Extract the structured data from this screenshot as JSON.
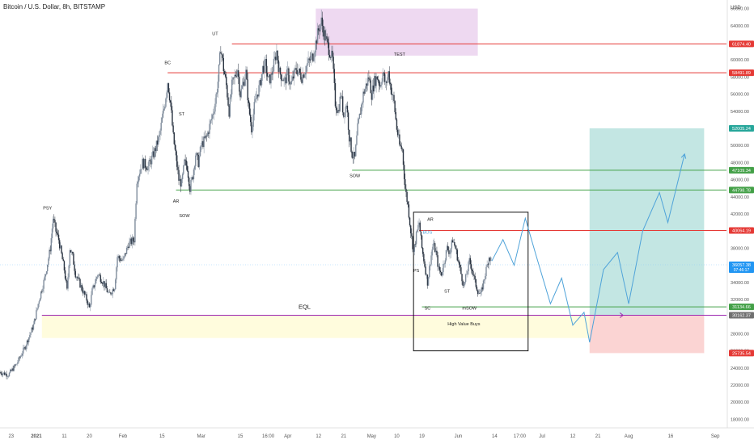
{
  "header": {
    "symbol_title": "Bitcoin / U.S. Dollar, 8h, BITSTAMP"
  },
  "axis": {
    "currency": "USD"
  },
  "chart_data": {
    "type": "candlestick",
    "title": "Bitcoin / U.S. Dollar, 8h, BITSTAMP",
    "ylabel": "USD",
    "ylim": [
      17000,
      67000
    ],
    "y_ticks": [
      18000,
      20000,
      22000,
      24000,
      26000,
      28000,
      30000,
      32000,
      34000,
      36000,
      38000,
      40000,
      42000,
      44000,
      46000,
      48000,
      50000,
      52000,
      54000,
      56000,
      58000,
      60000,
      62000,
      64000,
      66000
    ],
    "x_ticks": [
      {
        "label": "23",
        "day": -9
      },
      {
        "label": "2021",
        "day": 0,
        "bold": true
      },
      {
        "label": "11",
        "day": 10
      },
      {
        "label": "20",
        "day": 19
      },
      {
        "label": "Feb",
        "day": 31
      },
      {
        "label": "15",
        "day": 45
      },
      {
        "label": "Mar",
        "day": 59
      },
      {
        "label": "15",
        "day": 73
      },
      {
        "label": "16:00",
        "day": 83
      },
      {
        "label": "Apr",
        "day": 90
      },
      {
        "label": "12",
        "day": 101
      },
      {
        "label": "21",
        "day": 110
      },
      {
        "label": "May",
        "day": 120
      },
      {
        "label": "10",
        "day": 129
      },
      {
        "label": "19",
        "day": 138
      },
      {
        "label": "Jun",
        "day": 151
      },
      {
        "label": "14",
        "day": 164
      },
      {
        "label": "17:00",
        "day": 173
      },
      {
        "label": "Jul",
        "day": 181
      },
      {
        "label": "12",
        "day": 192
      },
      {
        "label": "21",
        "day": 201
      },
      {
        "label": "Aug",
        "day": 212
      },
      {
        "label": "16",
        "day": 227
      },
      {
        "label": "Sep",
        "day": 243
      }
    ],
    "price_path": [
      [
        -13,
        23500
      ],
      [
        -10,
        23200
      ],
      [
        -7,
        24500
      ],
      [
        -4,
        26500
      ],
      [
        -1,
        29000
      ],
      [
        1,
        32000
      ],
      [
        3,
        34500
      ],
      [
        5,
        38000
      ],
      [
        6,
        41500
      ],
      [
        7,
        40000
      ],
      [
        8,
        39000
      ],
      [
        10,
        35500
      ],
      [
        11,
        33000
      ],
      [
        12,
        38000
      ],
      [
        13,
        37000
      ],
      [
        14,
        35000
      ],
      [
        16,
        33500
      ],
      [
        18,
        32000
      ],
      [
        19,
        31000
      ],
      [
        20,
        33000
      ],
      [
        22,
        35000
      ],
      [
        24,
        34000
      ],
      [
        26,
        32500
      ],
      [
        28,
        33500
      ],
      [
        29,
        37000
      ],
      [
        31,
        36500
      ],
      [
        33,
        38500
      ],
      [
        35,
        39000
      ],
      [
        36,
        46000
      ],
      [
        38,
        48000
      ],
      [
        40,
        47500
      ],
      [
        42,
        49000
      ],
      [
        44,
        51000
      ],
      [
        46,
        55000
      ],
      [
        47,
        57500
      ],
      [
        48,
        55000
      ],
      [
        49,
        51000
      ],
      [
        50,
        48500
      ],
      [
        51,
        46000
      ],
      [
        52,
        45500
      ],
      [
        53,
        48000
      ],
      [
        54,
        47500
      ],
      [
        55,
        45000
      ],
      [
        56,
        46500
      ],
      [
        57,
        49000
      ],
      [
        58,
        48000
      ],
      [
        59,
        50000
      ],
      [
        61,
        51000
      ],
      [
        63,
        53500
      ],
      [
        64,
        55000
      ],
      [
        65,
        57500
      ],
      [
        66,
        61500
      ],
      [
        67,
        59000
      ],
      [
        68,
        57000
      ],
      [
        69,
        54000
      ],
      [
        70,
        57000
      ],
      [
        71,
        58000
      ],
      [
        72,
        59000
      ],
      [
        73,
        56000
      ],
      [
        75,
        58500
      ],
      [
        76,
        54500
      ],
      [
        77,
        52000
      ],
      [
        78,
        54500
      ],
      [
        79,
        56000
      ],
      [
        80,
        57000
      ],
      [
        81,
        59000
      ],
      [
        82,
        59500
      ],
      [
        83,
        57500
      ],
      [
        84,
        58000
      ],
      [
        85,
        59500
      ],
      [
        86,
        61000
      ],
      [
        87,
        58500
      ],
      [
        88,
        58000
      ],
      [
        89,
        57500
      ],
      [
        90,
        58500
      ],
      [
        91,
        57000
      ],
      [
        93,
        59000
      ],
      [
        95,
        58000
      ],
      [
        97,
        59500
      ],
      [
        99,
        60500
      ],
      [
        100,
        62000
      ],
      [
        101,
        63500
      ],
      [
        102,
        64500
      ],
      [
        103,
        63000
      ],
      [
        104,
        62000
      ],
      [
        105,
        61000
      ],
      [
        106,
        60000
      ],
      [
        107,
        55000
      ],
      [
        108,
        54000
      ],
      [
        109,
        56000
      ],
      [
        110,
        53500
      ],
      [
        111,
        55000
      ],
      [
        112,
        51000
      ],
      [
        113,
        49000
      ],
      [
        114,
        48500
      ],
      [
        115,
        52000
      ],
      [
        116,
        54000
      ],
      [
        117,
        56000
      ],
      [
        118,
        57000
      ],
      [
        119,
        58000
      ],
      [
        120,
        56000
      ],
      [
        121,
        57500
      ],
      [
        122,
        58000
      ],
      [
        123,
        57000
      ],
      [
        124,
        58500
      ],
      [
        125,
        57000
      ],
      [
        126,
        58500
      ],
      [
        127,
        56500
      ],
      [
        128,
        55000
      ],
      [
        129,
        52000
      ],
      [
        130,
        50000
      ],
      [
        131,
        49500
      ],
      [
        132,
        45000
      ],
      [
        133,
        43000
      ],
      [
        134,
        40000
      ],
      [
        135,
        37500
      ],
      [
        136,
        39500
      ],
      [
        137,
        41000
      ],
      [
        138,
        38000
      ],
      [
        139,
        36000
      ],
      [
        140,
        34000
      ],
      [
        141,
        36500
      ],
      [
        142,
        38500
      ],
      [
        143,
        37500
      ],
      [
        144,
        35500
      ],
      [
        145,
        35000
      ],
      [
        146,
        36500
      ],
      [
        147,
        38000
      ],
      [
        148,
        37500
      ],
      [
        149,
        39000
      ],
      [
        150,
        38000
      ],
      [
        151,
        36500
      ],
      [
        152,
        35000
      ],
      [
        153,
        33500
      ],
      [
        154,
        35000
      ],
      [
        155,
        36500
      ],
      [
        156,
        35500
      ],
      [
        157,
        34000
      ],
      [
        158,
        33000
      ],
      [
        159,
        32500
      ],
      [
        160,
        34000
      ],
      [
        161,
        35500
      ],
      [
        162,
        37000
      ],
      [
        163,
        36500
      ]
    ],
    "projection_path": [
      [
        163,
        36500
      ],
      [
        167,
        39000
      ],
      [
        171,
        36000
      ],
      [
        175,
        41500
      ],
      [
        179,
        37000
      ],
      [
        184,
        31500
      ],
      [
        188,
        34500
      ],
      [
        192,
        29000
      ],
      [
        196,
        30500
      ],
      [
        198,
        27000
      ],
      [
        203,
        35500
      ],
      [
        208,
        37500
      ],
      [
        212,
        31500
      ],
      [
        217,
        40000
      ],
      [
        223,
        44500
      ],
      [
        226,
        41000
      ],
      [
        232,
        49000
      ]
    ],
    "levels": [
      {
        "price": 61874.4,
        "label": "61874.40",
        "color": "#e53935",
        "from_day": 70
      },
      {
        "price": 58491.89,
        "label": "58491.89",
        "color": "#e53935",
        "from_day": 47
      },
      {
        "price": 47109.34,
        "label": "47109.34",
        "color": "#43a047",
        "from_day": 113
      },
      {
        "price": 44798.78,
        "label": "44798.78",
        "color": "#43a047",
        "from_day": 50
      },
      {
        "price": 40064.19,
        "label": "40064.19",
        "color": "#e53935",
        "from_day": 137
      },
      {
        "price": 31134.66,
        "label": "31134.66",
        "color": "#43a047",
        "from_day": 138
      },
      {
        "price": 30162.37,
        "label": "EQL",
        "color": "#9c27b0",
        "from_day": 2
      }
    ],
    "price_labels": [
      {
        "price": 61874.4,
        "text": "61874.40",
        "color": "#e53935"
      },
      {
        "price": 58491.89,
        "text": "58491.89",
        "color": "#e53935"
      },
      {
        "price": 52005.24,
        "text": "52005.24",
        "color": "#26a69a"
      },
      {
        "price": 47109.34,
        "text": "47109.34",
        "color": "#43a047"
      },
      {
        "price": 44798.78,
        "text": "44798.78",
        "color": "#43a047"
      },
      {
        "price": 40064.19,
        "text": "40064.19",
        "color": "#e53935"
      },
      {
        "price": 36057.38,
        "text": "36057.38",
        "color": "#2196f3",
        "sub": "07:46:17"
      },
      {
        "price": 31134.66,
        "text": "31134.66",
        "color": "#43a047"
      },
      {
        "price": 30162.37,
        "text": "30162.37",
        "color": "#707070"
      },
      {
        "price": 25735.54,
        "text": "25735.54",
        "color": "#e53935"
      }
    ],
    "current_price": 36057.38,
    "zones": [
      {
        "name": "top-zone",
        "from_day": 100,
        "to_day": 158,
        "y_from": 60500,
        "y_to": 66000,
        "color": "#ce93d8",
        "opacity": 0.35
      },
      {
        "name": "high-value-buys-zone",
        "from_day": 2,
        "to_day": 198,
        "y_from": 27500,
        "y_to": 30162,
        "color": "#fff59d",
        "opacity": 0.35
      },
      {
        "name": "reward-zone",
        "from_day": 198,
        "to_day": 239,
        "y_from": 30162,
        "y_to": 52005,
        "color": "#26a69a",
        "opacity": 0.28
      },
      {
        "name": "risk-zone",
        "from_day": 198,
        "to_day": 239,
        "y_from": 25735,
        "y_to": 30162,
        "color": "#ef5350",
        "opacity": 0.25
      }
    ],
    "box": {
      "from_day": 135,
      "to_day": 176,
      "y_from": 26000,
      "y_to": 42200
    },
    "annotations": [
      {
        "text": "PSY",
        "day": 4,
        "price": 42500
      },
      {
        "text": "BC",
        "day": 47,
        "price": 59500
      },
      {
        "text": "ST",
        "day": 52,
        "price": 53500
      },
      {
        "text": "AR",
        "day": 50,
        "price": 43300
      },
      {
        "text": "SOW",
        "day": 53,
        "price": 41600
      },
      {
        "text": "UT",
        "day": 64,
        "price": 62900
      },
      {
        "text": "TEST",
        "day": 130,
        "price": 60500
      },
      {
        "text": "SOW",
        "day": 114,
        "price": 46300
      },
      {
        "text": "AR",
        "day": 141,
        "price": 41200
      },
      {
        "text": "BOS",
        "day": 140,
        "price": 39700
      },
      {
        "text": "PS",
        "day": 136,
        "price": 35200
      },
      {
        "text": "ST",
        "day": 147,
        "price": 32800
      },
      {
        "text": "SC",
        "day": 140,
        "price": 30800
      },
      {
        "text": "mSOW",
        "day": 155,
        "price": 30800
      },
      {
        "text": "EQL",
        "day": 96,
        "price": 30900
      },
      {
        "text": "High Value Buys",
        "day": 153,
        "price": 29000
      }
    ]
  }
}
